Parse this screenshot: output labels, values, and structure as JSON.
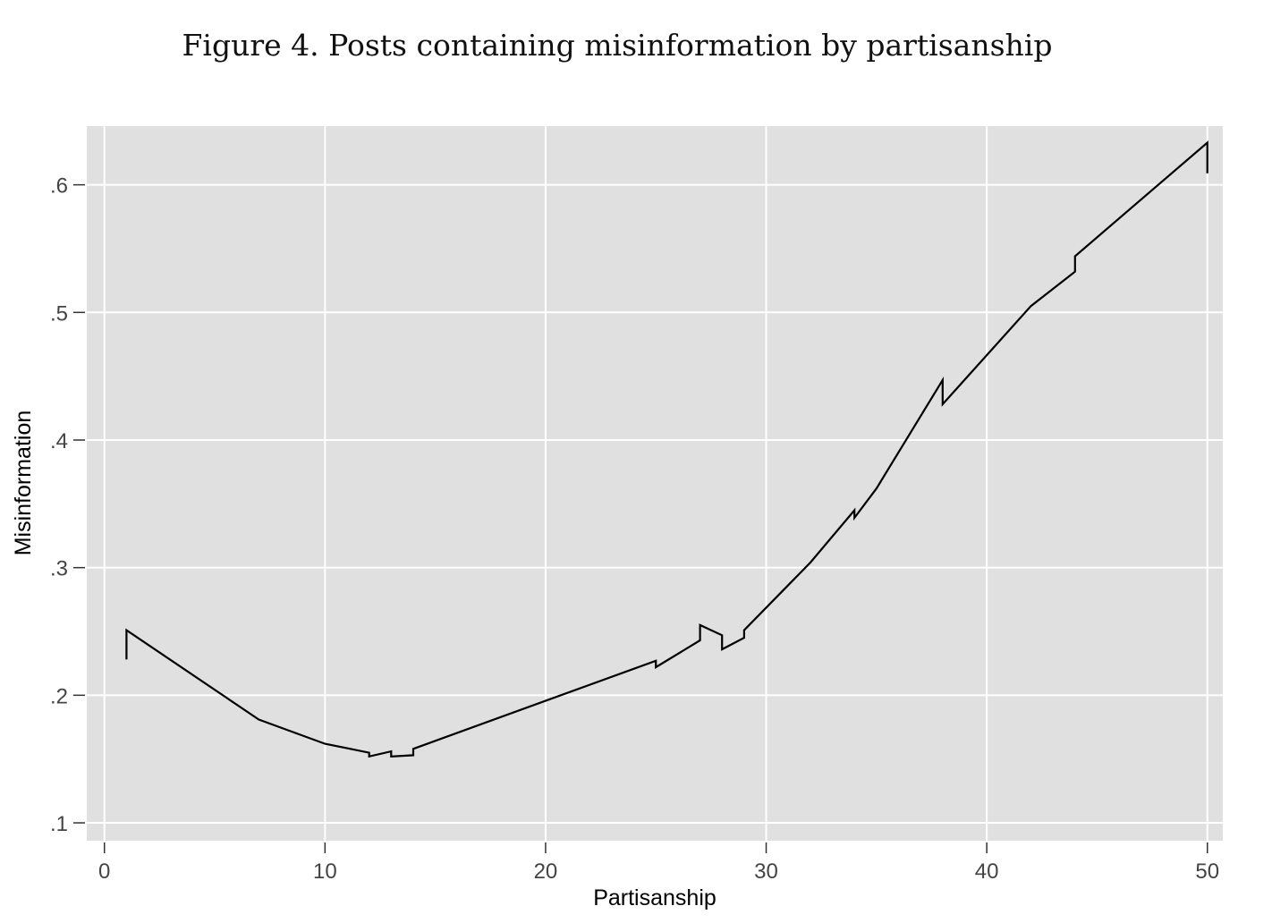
{
  "chart_data": {
    "type": "line",
    "title": "Figure 4. Posts containing misinformation by partisanship",
    "xlabel": "Partisanship",
    "ylabel": "Misinformation",
    "xlim": [
      -0.8,
      50.7
    ],
    "ylim": [
      0.086,
      0.646
    ],
    "xticks": [
      0,
      10,
      20,
      30,
      40,
      50
    ],
    "xtick_labels": [
      "0",
      "10",
      "20",
      "30",
      "40",
      "50"
    ],
    "yticks": [
      0.1,
      0.2,
      0.3,
      0.4,
      0.5,
      0.6
    ],
    "ytick_labels": [
      ".1",
      ".2",
      ".3",
      ".4",
      ".5",
      ".6"
    ],
    "grid": true,
    "colors": {
      "plot_background": "#e0e0e0",
      "grid": "#ffffff",
      "line": "#000000"
    },
    "series": [
      {
        "x": [
          1,
          1,
          7,
          10,
          12,
          12,
          13,
          13,
          14,
          14,
          25,
          25,
          27,
          27,
          28,
          28,
          29,
          29,
          32,
          34,
          34,
          35,
          38,
          38,
          42,
          44,
          44,
          50,
          50
        ],
        "y": [
          0.228,
          0.251,
          0.181,
          0.162,
          0.155,
          0.152,
          0.156,
          0.152,
          0.153,
          0.158,
          0.227,
          0.222,
          0.243,
          0.255,
          0.247,
          0.236,
          0.245,
          0.251,
          0.304,
          0.345,
          0.339,
          0.362,
          0.447,
          0.428,
          0.505,
          0.532,
          0.544,
          0.633,
          0.609
        ]
      }
    ]
  }
}
